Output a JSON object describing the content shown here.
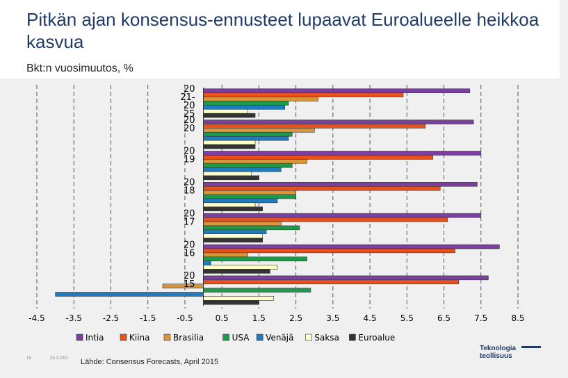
{
  "header": {
    "title": "Pitkän ajan konsensus-ennusteet lupaavat Euroalueelle heikkoa kasvua",
    "subtitle": "Bkt:n vuosimuutos, %"
  },
  "footer": {
    "slide_number": "18",
    "date": "28.2.2021",
    "source": "Lähde: Consensus Forecasts, April 2015"
  },
  "logo": {
    "line1": "Teknologia",
    "line2": "teollisuus"
  },
  "chart_data": {
    "type": "bar",
    "orientation": "horizontal",
    "categories": [
      "2021-2025",
      "2020",
      "2019",
      "2018",
      "2017",
      "2016",
      "2015"
    ],
    "category_labels": [
      "20 21- 20 25",
      "20 20",
      "20 19",
      "20 18",
      "20 17",
      "20 16",
      "20 15"
    ],
    "xticks": [
      -4.5,
      -3.5,
      -2.5,
      -1.5,
      -0.5,
      0.5,
      1.5,
      2.5,
      3.5,
      4.5,
      5.5,
      6.5,
      7.5,
      8.5
    ],
    "xlim": [
      -4.5,
      8.5
    ],
    "grid": "vertical dashed",
    "legend_position": "bottom",
    "series": [
      {
        "name": "Intia",
        "color": "#7b3fa0",
        "values": [
          7.2,
          7.3,
          7.5,
          7.4,
          7.5,
          8.0,
          7.7
        ]
      },
      {
        "name": "Kiina",
        "color": "#e8511c",
        "values": [
          5.4,
          6.0,
          6.2,
          6.4,
          6.6,
          6.8,
          6.9
        ]
      },
      {
        "name": "Brasilia",
        "color": "#d9953a",
        "values": [
          3.1,
          3.0,
          2.8,
          2.5,
          2.1,
          1.2,
          -1.1
        ]
      },
      {
        "name": "USA",
        "color": "#1f9a4a",
        "values": [
          2.3,
          2.4,
          2.4,
          2.5,
          2.6,
          2.8,
          2.9
        ]
      },
      {
        "name": "Venäjä",
        "color": "#1f7cbf",
        "values": [
          2.2,
          2.3,
          2.1,
          2.0,
          1.7,
          0.2,
          -4.0
        ]
      },
      {
        "name": "Saksa",
        "color": "#ffffcc",
        "values": [
          1.2,
          1.4,
          1.3,
          1.4,
          1.6,
          2.0,
          1.9
        ]
      },
      {
        "name": "Euroalue",
        "color": "#333333",
        "values": [
          1.4,
          1.4,
          1.5,
          1.6,
          1.6,
          1.8,
          1.5
        ]
      }
    ]
  }
}
